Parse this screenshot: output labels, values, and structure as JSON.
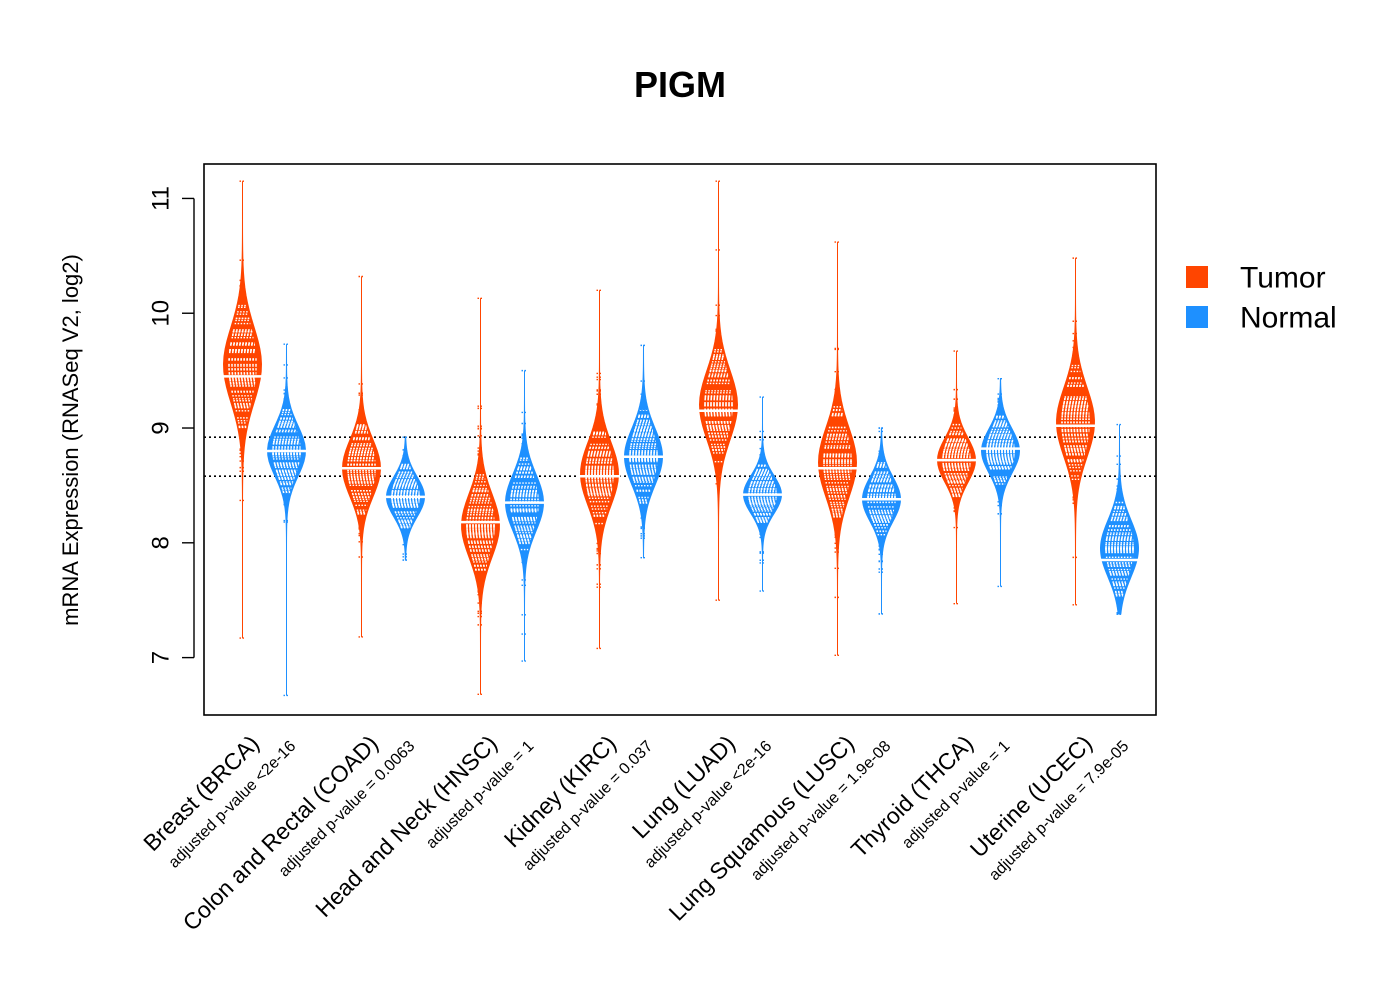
{
  "chart_data": {
    "type": "beanplot",
    "title": "PIGM",
    "xlabel": "",
    "ylabel": "mRNA Expression (RNASeq V2, log2)",
    "ylim": [
      6.5,
      11.3
    ],
    "yticks": [
      "7",
      "8",
      "9",
      "10",
      "11"
    ],
    "reference_lines": [
      8.58,
      8.92
    ],
    "legend": {
      "placement": "right",
      "entries": [
        {
          "name": "Tumor",
          "color": "#ff4500"
        },
        {
          "name": "Normal",
          "color": "#1e90ff"
        }
      ]
    },
    "categories": [
      {
        "label": "Breast (BRCA)",
        "pvalue": "adjusted p-value <2e-16",
        "tumor": {
          "median": 9.45,
          "min": 7.17,
          "max": 11.15,
          "center": 9.55,
          "spread": 0.6
        },
        "normal": {
          "median": 8.8,
          "min": 6.67,
          "max": 9.73,
          "center": 8.8,
          "spread": 0.4
        }
      },
      {
        "label": "Colon and Rectal (COAD)",
        "pvalue": "adjusted p-value = 0.0063",
        "tumor": {
          "median": 8.65,
          "min": 7.18,
          "max": 10.32,
          "center": 8.65,
          "spread": 0.45
        },
        "normal": {
          "median": 8.4,
          "min": 7.85,
          "max": 8.92,
          "center": 8.4,
          "spread": 0.32
        }
      },
      {
        "label": "Head and Neck (HNSC)",
        "pvalue": "adjusted p-value = 1",
        "tumor": {
          "median": 8.18,
          "min": 6.68,
          "max": 10.13,
          "center": 8.15,
          "spread": 0.5
        },
        "normal": {
          "median": 8.35,
          "min": 6.97,
          "max": 9.5,
          "center": 8.35,
          "spread": 0.45
        }
      },
      {
        "label": "Kidney (KIRC)",
        "pvalue": "adjusted p-value = 0.037",
        "tumor": {
          "median": 8.58,
          "min": 7.08,
          "max": 10.2,
          "center": 8.6,
          "spread": 0.5
        },
        "normal": {
          "median": 8.75,
          "min": 7.87,
          "max": 9.72,
          "center": 8.75,
          "spread": 0.45
        }
      },
      {
        "label": "Lung (LUAD)",
        "pvalue": "adjusted p-value <2e-16",
        "tumor": {
          "median": 9.15,
          "min": 7.5,
          "max": 11.15,
          "center": 9.2,
          "spread": 0.55
        },
        "normal": {
          "median": 8.42,
          "min": 7.58,
          "max": 9.27,
          "center": 8.42,
          "spread": 0.3
        }
      },
      {
        "label": "Lung Squamous (LUSC)",
        "pvalue": "adjusted p-value = 1.9e-08",
        "tumor": {
          "median": 8.65,
          "min": 7.02,
          "max": 10.62,
          "center": 8.7,
          "spread": 0.55
        },
        "normal": {
          "median": 8.38,
          "min": 7.38,
          "max": 9.0,
          "center": 8.38,
          "spread": 0.35
        }
      },
      {
        "label": "Thyroid (THCA)",
        "pvalue": "adjusted p-value = 1",
        "tumor": {
          "median": 8.72,
          "min": 7.47,
          "max": 9.67,
          "center": 8.72,
          "spread": 0.35
        },
        "normal": {
          "median": 8.82,
          "min": 7.62,
          "max": 9.43,
          "center": 8.8,
          "spread": 0.35
        }
      },
      {
        "label": "Uterine (UCEC)",
        "pvalue": "adjusted p-value = 7.9e-05",
        "tumor": {
          "median": 9.02,
          "min": 7.46,
          "max": 10.48,
          "center": 9.05,
          "spread": 0.55
        },
        "normal": {
          "median": 7.85,
          "min": 7.38,
          "max": 9.03,
          "center": 7.95,
          "spread": 0.45
        }
      }
    ]
  }
}
